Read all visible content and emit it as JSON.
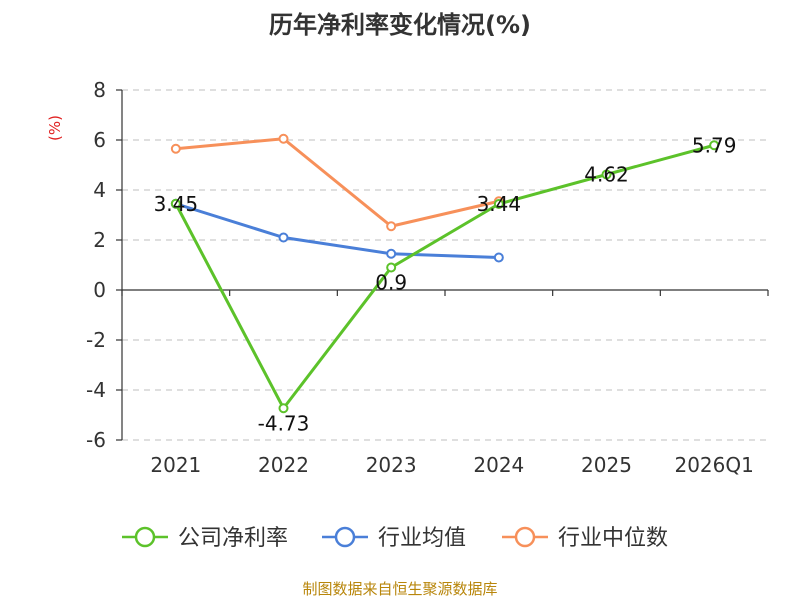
{
  "chart_data": {
    "type": "line",
    "title": "历年净利率变化情况(%)",
    "ylabel": "(%)",
    "categories": [
      "2021",
      "2022",
      "2023",
      "2024",
      "2025",
      "2026Q1"
    ],
    "ylim": [
      -6,
      8
    ],
    "yticks": [
      8,
      6,
      4,
      2,
      0,
      -2,
      -4,
      -6
    ],
    "grid": true,
    "legend_position": "bottom",
    "series": [
      {
        "name": "公司净利率",
        "color": "#5cc22a",
        "values": [
          3.45,
          -4.73,
          0.9,
          3.44,
          4.62,
          5.79
        ],
        "labels": [
          "3.45",
          "-4.73",
          "0.9",
          "3.44",
          "4.62",
          "5.79"
        ]
      },
      {
        "name": "行业均值",
        "color": "#4a7fd8",
        "values": [
          3.45,
          2.1,
          1.45,
          1.3,
          null,
          null
        ],
        "labels": []
      },
      {
        "name": "行业中位数",
        "color": "#f7905a",
        "values": [
          5.65,
          6.05,
          2.55,
          3.55,
          null,
          null
        ],
        "labels": []
      }
    ],
    "source": "制图数据来自恒生聚源数据库"
  }
}
